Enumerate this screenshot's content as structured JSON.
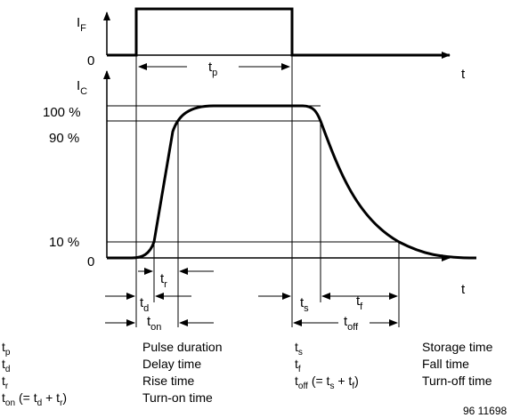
{
  "top_plot": {
    "y_label": "I",
    "y_label_sub": "F",
    "zero_label": "0",
    "x_label": "t",
    "interval_label": "t",
    "interval_label_sub": "p"
  },
  "bottom_plot": {
    "y_label": "I",
    "y_label_sub": "C",
    "levels": [
      "100 %",
      "90 %",
      "10 %"
    ],
    "zero_label": "0",
    "x_label": "t",
    "intervals": {
      "tr": {
        "main": "t",
        "sub": "r"
      },
      "td": {
        "main": "t",
        "sub": "d"
      },
      "ton": {
        "main": "t",
        "sub": "on"
      },
      "ts": {
        "main": "t",
        "sub": "s"
      },
      "tf": {
        "main": "t",
        "sub": "f"
      },
      "toff": {
        "main": "t",
        "sub": "off"
      }
    }
  },
  "legend": {
    "left": [
      {
        "sym": "t",
        "sub": "p",
        "extra": "",
        "desc": "Pulse duration"
      },
      {
        "sym": "t",
        "sub": "d",
        "extra": "",
        "desc": "Delay time"
      },
      {
        "sym": "t",
        "sub": "r",
        "extra": "",
        "desc": "Rise time"
      },
      {
        "sym": "t",
        "sub": "on",
        "extra": "(= t",
        "extra_sub1": "d",
        "extra_mid": " + t",
        "extra_sub2": "r",
        "extra_end": ")",
        "desc": "Turn-on time"
      }
    ],
    "right": [
      {
        "sym": "t",
        "sub": "s",
        "desc": "Storage time"
      },
      {
        "sym": "t",
        "sub": "f",
        "desc": "Fall time"
      },
      {
        "sym": "t",
        "sub": "off",
        "extra": "(= t",
        "extra_sub1": "s",
        "extra_mid": " + t",
        "extra_sub2": "f",
        "extra_end": ")",
        "desc": "Turn-off time"
      }
    ]
  },
  "figure_id": "96 11698"
}
